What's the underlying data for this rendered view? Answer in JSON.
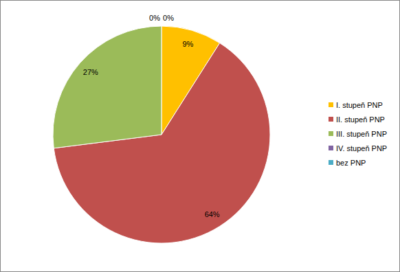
{
  "chart_data": {
    "type": "pie",
    "categories": [
      "I. stupeň PNP",
      "II. stupeň PNP",
      "III. stupeň PNP",
      "IV. stupeň PNP",
      "bez PNP"
    ],
    "values": [
      9,
      64,
      27,
      0,
      0
    ],
    "value_labels": [
      "9%",
      "64%",
      "27%",
      "0%",
      "0%"
    ],
    "colors": [
      "#ffc000",
      "#c0504d",
      "#9bbb59",
      "#8064a2",
      "#4bacc6"
    ],
    "data_labels": true,
    "legend": "right"
  }
}
